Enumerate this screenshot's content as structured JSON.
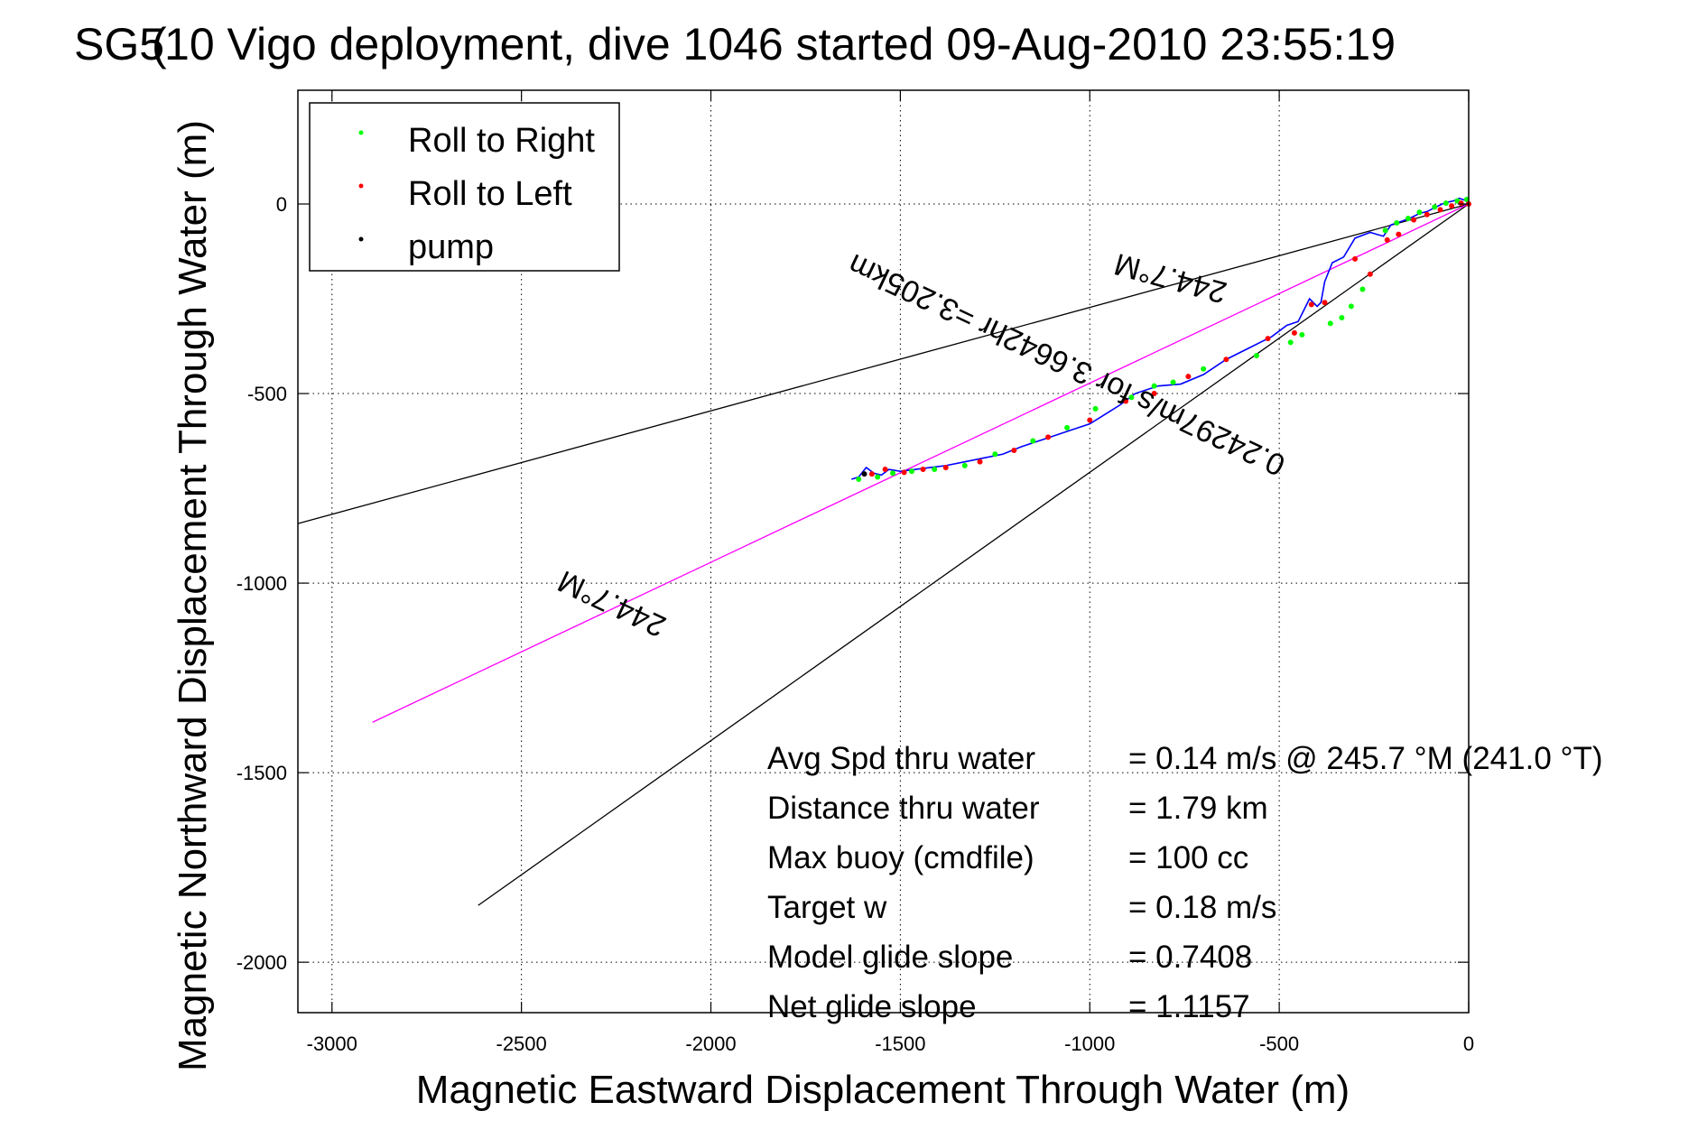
{
  "chart_data": {
    "type": "line",
    "title": "SG510 Vigo deployment, dive 1046 started 09-Aug-2010 23:55:19",
    "title_overlay_glyph": "(",
    "xlabel": "Magnetic Eastward Displacement Through Water (m)",
    "ylabel": "Magnetic Northward Displacement Through Water (m)",
    "xlim": [
      -3090,
      0
    ],
    "ylim": [
      -2133,
      300
    ],
    "grid": true,
    "x_ticks": [
      -3000,
      -2500,
      -2000,
      -1500,
      -1000,
      -500,
      0
    ],
    "y_ticks": [
      0,
      -500,
      -1000,
      -1500,
      -2000
    ],
    "x_tick_labels": [
      "-3000",
      "-2500",
      "-2000",
      "-1500",
      "-1000",
      "-500",
      "0"
    ],
    "y_tick_labels": [
      "0",
      "-500",
      "-1000",
      "-1500",
      "-2000"
    ],
    "legend": {
      "placement": "top-left",
      "entries": [
        {
          "label": "Roll to Right",
          "color": "#00ff00"
        },
        {
          "label": "Roll to Left",
          "color": "#ff0000"
        },
        {
          "label": "pump",
          "color": "#000000"
        }
      ]
    },
    "series": [
      {
        "name": "cone-upper",
        "color": "#000000",
        "x": [
          0,
          -3090
        ],
        "y": [
          0,
          -843
        ]
      },
      {
        "name": "cone-lower",
        "color": "#000000",
        "x": [
          0,
          -2614
        ],
        "y": [
          0,
          -1850
        ]
      },
      {
        "name": "heading-line",
        "color": "#ff00ff",
        "x": [
          0,
          -2893
        ],
        "y": [
          0,
          -1367
        ]
      },
      {
        "name": "track",
        "color": "#0000ff",
        "x": [
          0,
          -10,
          -25,
          -40,
          -55,
          -70,
          -90,
          -110,
          -130,
          -150,
          -175,
          -205,
          -225,
          -260,
          -300,
          -330,
          -360,
          -380,
          -390,
          -400,
          -420,
          -450,
          -480,
          -520,
          -580,
          -640,
          -700,
          -760,
          -820,
          -880,
          -920,
          -960,
          -1000,
          -1060,
          -1120,
          -1180,
          -1230,
          -1280,
          -1330,
          -1380,
          -1420,
          -1460,
          -1500,
          -1530,
          -1550,
          -1570,
          -1590,
          -1610,
          -1629
        ],
        "y": [
          0,
          10,
          15,
          8,
          5,
          0,
          -10,
          -20,
          -25,
          -35,
          -45,
          -55,
          -85,
          -75,
          -90,
          -140,
          -155,
          -205,
          -260,
          -270,
          -250,
          -310,
          -320,
          -350,
          -380,
          -410,
          -450,
          -475,
          -480,
          -500,
          -530,
          -555,
          -580,
          -600,
          -620,
          -640,
          -660,
          -670,
          -680,
          -690,
          -695,
          -700,
          -705,
          -700,
          -715,
          -710,
          -695,
          -720,
          -726
        ]
      },
      {
        "name": "Roll to Right",
        "color": "#00ff00",
        "x": [
          -5,
          -30,
          -60,
          -90,
          -130,
          -160,
          -190,
          -220,
          -280,
          -310,
          -335,
          -365,
          -440,
          -470,
          -560,
          -700,
          -780,
          -830,
          -890,
          -985,
          -1060,
          -1150,
          -1250,
          -1330,
          -1410,
          -1470,
          -1520,
          -1560,
          -1610
        ],
        "y": [
          12,
          8,
          2,
          -8,
          -22,
          -38,
          -50,
          -70,
          -225,
          -270,
          -300,
          -315,
          -345,
          -365,
          -400,
          -435,
          -470,
          -480,
          -510,
          -540,
          -590,
          -625,
          -660,
          -690,
          -700,
          -705,
          -710,
          -720,
          -726
        ]
      },
      {
        "name": "Roll to Left",
        "color": "#ff0000",
        "x": [
          0,
          -20,
          -45,
          -75,
          -110,
          -145,
          -185,
          -215,
          -260,
          -300,
          -380,
          -415,
          -460,
          -530,
          -640,
          -740,
          -830,
          -905,
          -1000,
          -1110,
          -1200,
          -1290,
          -1380,
          -1440,
          -1490,
          -1540,
          -1575
        ],
        "y": [
          0,
          2,
          -5,
          -15,
          -28,
          -42,
          -80,
          -95,
          -185,
          -145,
          -260,
          -265,
          -340,
          -355,
          -410,
          -455,
          -500,
          -520,
          -570,
          -615,
          -650,
          -680,
          -695,
          -700,
          -708,
          -700,
          -712
        ]
      },
      {
        "name": "pump",
        "color": "#000000",
        "x": [
          -1595
        ],
        "y": [
          -712
        ]
      }
    ],
    "annotations": [
      {
        "text": "244.7°M",
        "x": -780,
        "y": -170,
        "rotation_deg": 195.3
      },
      {
        "text": "0.24297m/s for 3.6642hr =3.205km",
        "x": -1050,
        "y": -400,
        "rotation_deg": 205.3
      },
      {
        "text": "244.7°M",
        "x": -2250,
        "y": -1030,
        "rotation_deg": 205.3
      }
    ],
    "stats": [
      {
        "label": "Avg Spd thru water",
        "value": "=  0.14 m/s @ 245.7 °M (241.0 °T)"
      },
      {
        "label": "Distance thru water",
        "value": "=  1.79 km"
      },
      {
        "label": "Max buoy (cmdfile)",
        "value": "= 100 cc"
      },
      {
        "label": "Target w",
        "value": "= 0.18 m/s"
      },
      {
        "label": "Model glide slope",
        "value": "= 0.7408"
      },
      {
        "label": "Net glide slope",
        "value": "= 1.1157"
      }
    ]
  }
}
